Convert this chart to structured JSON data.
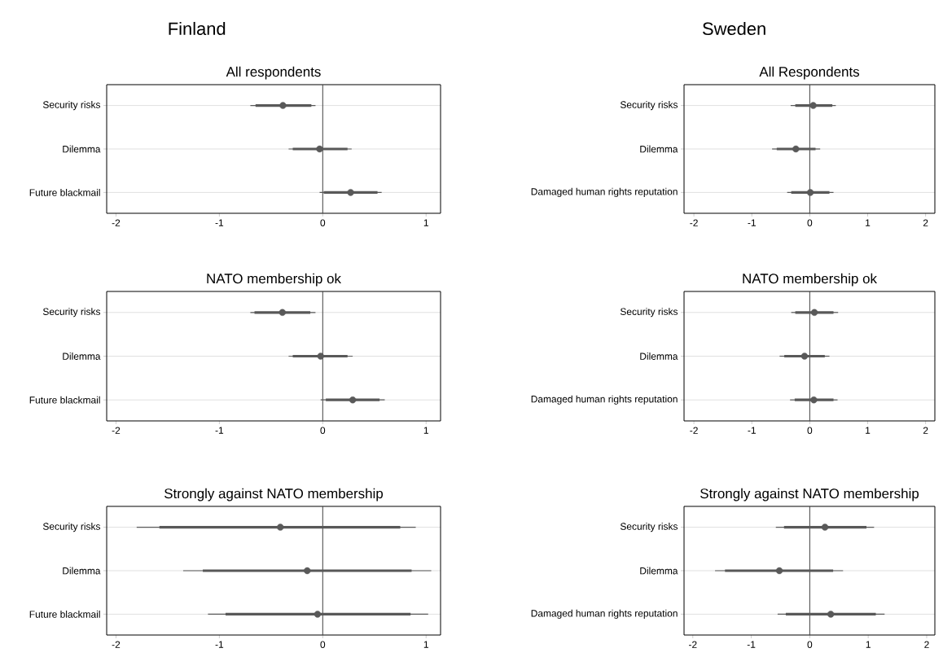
{
  "chart_data": [
    {
      "type": "scatter",
      "orientation": "horizontal",
      "title": "All respondents",
      "annotations": [
        "Finland"
      ],
      "categories": [
        "Security risks",
        "Dilemma",
        "Future blackmail"
      ],
      "xlim": [
        -2.09,
        1.14
      ],
      "xticks": [
        -2,
        -1,
        0,
        1
      ],
      "grid": "y",
      "marker": "circle",
      "ref_lines": [
        {
          "axis": "x",
          "value": 0
        }
      ],
      "series": [
        {
          "type": "bar",
          "color": "#595959",
          "base": [
            -0.65,
            -0.29,
            0.01
          ],
          "values": [
            0.54,
            0.53,
            0.52
          ]
        },
        {
          "type": "scatter",
          "color": "#595959",
          "values": [
            -0.385,
            -0.03,
            0.27
          ],
          "errors": [
            [
              -0.7,
              -0.07
            ],
            [
              -0.33,
              0.28
            ],
            [
              -0.03,
              0.57
            ]
          ]
        }
      ]
    },
    {
      "type": "scatter",
      "orientation": "horizontal",
      "title": "All Respondents",
      "annotations": [
        "Sweden"
      ],
      "categories": [
        "Security risks",
        "Dilemma",
        "Damaged human rights reputation"
      ],
      "xlim": [
        -2.17,
        2.16
      ],
      "xticks": [
        -2,
        -1,
        0,
        1,
        2
      ],
      "grid": "y",
      "marker": "circle",
      "ref_lines": [
        {
          "axis": "x",
          "value": 0
        }
      ],
      "series": [
        {
          "type": "bar",
          "color": "#595959",
          "base": [
            -0.25,
            -0.57,
            -0.32
          ],
          "values": [
            0.64,
            0.67,
            0.66
          ]
        },
        {
          "type": "scatter",
          "color": "#595959",
          "values": [
            0.06,
            -0.24,
            0.01
          ],
          "errors": [
            [
              -0.33,
              0.45
            ],
            [
              -0.65,
              0.18
            ],
            [
              -0.39,
              0.41
            ]
          ]
        }
      ]
    },
    {
      "type": "scatter",
      "orientation": "horizontal",
      "title": "NATO membership ok",
      "categories": [
        "Security risks",
        "Dilemma",
        "Future blackmail"
      ],
      "xlim": [
        -2.09,
        1.14
      ],
      "xticks": [
        -2,
        -1,
        0,
        1
      ],
      "grid": "y",
      "marker": "circle",
      "ref_lines": [
        {
          "axis": "x",
          "value": 0
        }
      ],
      "series": [
        {
          "type": "bar",
          "color": "#595959",
          "base": [
            -0.66,
            -0.29,
            0.03
          ],
          "values": [
            0.54,
            0.53,
            0.52
          ]
        },
        {
          "type": "scatter",
          "color": "#595959",
          "values": [
            -0.39,
            -0.02,
            0.29
          ],
          "errors": [
            [
              -0.7,
              -0.07
            ],
            [
              -0.33,
              0.29
            ],
            [
              -0.02,
              0.6
            ]
          ]
        }
      ]
    },
    {
      "type": "scatter",
      "orientation": "horizontal",
      "title": "NATO membership ok",
      "categories": [
        "Security risks",
        "Dilemma",
        "Damaged human rights reputation"
      ],
      "xlim": [
        -2.17,
        2.16
      ],
      "xticks": [
        -2,
        -1,
        0,
        1,
        2
      ],
      "grid": "y",
      "marker": "circle",
      "ref_lines": [
        {
          "axis": "x",
          "value": 0
        }
      ],
      "series": [
        {
          "type": "bar",
          "color": "#595959",
          "base": [
            -0.25,
            -0.44,
            -0.26
          ],
          "values": [
            0.66,
            0.7,
            0.67
          ]
        },
        {
          "type": "scatter",
          "color": "#595959",
          "values": [
            0.08,
            -0.09,
            0.07
          ],
          "errors": [
            [
              -0.32,
              0.49
            ],
            [
              -0.52,
              0.34
            ],
            [
              -0.34,
              0.48
            ]
          ]
        }
      ]
    },
    {
      "type": "scatter",
      "orientation": "horizontal",
      "title": "Strongly against NATO membership",
      "categories": [
        "Security risks",
        "Dilemma",
        "Future blackmail"
      ],
      "xlim": [
        -2.09,
        1.14
      ],
      "xticks": [
        -2,
        -1,
        0,
        1
      ],
      "grid": "y",
      "marker": "circle",
      "ref_lines": [
        {
          "axis": "x",
          "value": 0
        }
      ],
      "series": [
        {
          "type": "bar",
          "color": "#595959",
          "base": [
            -1.58,
            -1.16,
            -0.94
          ],
          "values": [
            2.33,
            2.02,
            1.79
          ]
        },
        {
          "type": "scatter",
          "color": "#595959",
          "values": [
            -0.41,
            -0.15,
            -0.05
          ],
          "errors": [
            [
              -1.8,
              0.9
            ],
            [
              -1.35,
              1.05
            ],
            [
              -1.11,
              1.02
            ]
          ]
        }
      ]
    },
    {
      "type": "scatter",
      "orientation": "horizontal",
      "title": "Strongly against NATO membership",
      "categories": [
        "Security risks",
        "Dilemma",
        "Damaged human rights reputation"
      ],
      "xlim": [
        -2.15,
        2.14
      ],
      "xticks": [
        -2,
        -1,
        0,
        1,
        2
      ],
      "grid": "y",
      "marker": "circle",
      "ref_lines": [
        {
          "axis": "x",
          "value": 0
        }
      ],
      "series": [
        {
          "type": "bar",
          "color": "#595959",
          "base": [
            -0.44,
            -1.45,
            -0.41
          ],
          "values": [
            1.41,
            1.85,
            1.54
          ]
        },
        {
          "type": "scatter",
          "color": "#595959",
          "values": [
            0.26,
            -0.52,
            0.36
          ],
          "errors": [
            [
              -0.58,
              1.1
            ],
            [
              -1.62,
              0.57
            ],
            [
              -0.55,
              1.28
            ]
          ]
        }
      ]
    }
  ]
}
